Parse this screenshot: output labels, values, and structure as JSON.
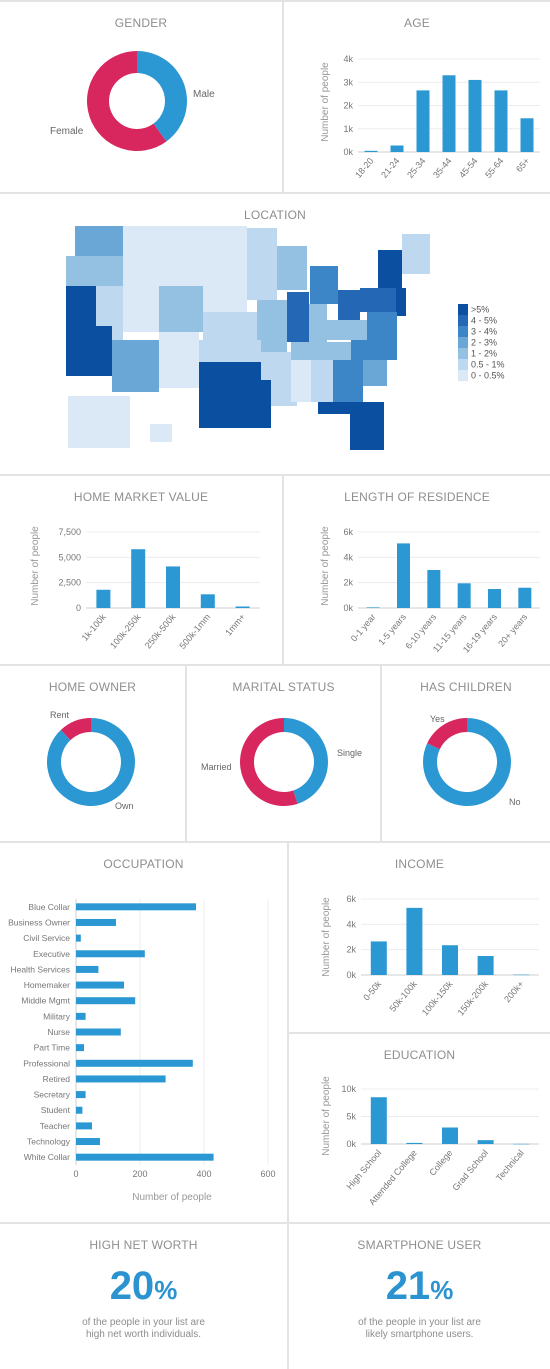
{
  "colors": {
    "blue": "#2b98d3",
    "pink": "#d8265f",
    "grid": "#ececec",
    "map_scale": [
      "#0a4fa0",
      "#2468b5",
      "#3c86c7",
      "#6aa7d6",
      "#94c1e2",
      "#bed8ef",
      "#dbe9f7"
    ]
  },
  "gender": {
    "title": "GENDER",
    "chart_data": {
      "type": "pie",
      "donut": true,
      "slices": [
        {
          "label": "Male",
          "value": 0.4,
          "color": "#2b98d3"
        },
        {
          "label": "Female",
          "value": 0.6,
          "color": "#d8265f"
        }
      ]
    }
  },
  "age": {
    "title": "AGE",
    "chart_data": {
      "type": "bar",
      "categories": [
        "18-20",
        "21-24",
        "25-34",
        "35-44",
        "45-54",
        "55-64",
        "65+"
      ],
      "values": [
        50,
        280,
        2650,
        3300,
        3100,
        2650,
        1450
      ],
      "ylabel": "Number of people",
      "yticks": [
        "0k",
        "1k",
        "2k",
        "3k",
        "4k"
      ],
      "ylim": [
        0,
        4000
      ]
    }
  },
  "location": {
    "title": "LOCATION",
    "legend": [
      ">5%",
      "4 - 5%",
      "3 - 4%",
      "2 - 3%",
      "1 - 2%",
      "0.5 - 1%",
      "0 - 0.5%"
    ]
  },
  "home_value": {
    "title": "HOME MARKET VALUE",
    "chart_data": {
      "type": "bar",
      "categories": [
        "1k-100k",
        "100k-250k",
        "250k-500k",
        "500k-1mm",
        "1mm+"
      ],
      "values": [
        1800,
        5800,
        4100,
        1350,
        150
      ],
      "ylabel": "Number of people",
      "yticks": [
        "0",
        "2,500",
        "5,000",
        "7,500"
      ],
      "ylim": [
        0,
        7500
      ]
    }
  },
  "residence": {
    "title": "LENGTH OF RESIDENCE",
    "chart_data": {
      "type": "bar",
      "categories": [
        "0-1 year",
        "1-5 years",
        "6-10 years",
        "11-15 years",
        "16-19 years",
        "20+ years"
      ],
      "values": [
        50,
        5100,
        3000,
        1950,
        1500,
        1600
      ],
      "ylabel": "Number of people",
      "yticks": [
        "0k",
        "2k",
        "4k",
        "6k"
      ],
      "ylim": [
        0,
        6000
      ]
    }
  },
  "home_owner": {
    "title": "HOME OWNER",
    "chart_data": {
      "type": "pie",
      "donut": true,
      "slices": [
        {
          "label": "Own",
          "value": 0.88,
          "color": "#2b98d3"
        },
        {
          "label": "Rent",
          "value": 0.12,
          "color": "#d8265f"
        }
      ]
    }
  },
  "marital": {
    "title": "MARITAL STATUS",
    "chart_data": {
      "type": "pie",
      "donut": true,
      "slices": [
        {
          "label": "Single",
          "value": 0.45,
          "color": "#2b98d3"
        },
        {
          "label": "Married",
          "value": 0.55,
          "color": "#d8265f"
        }
      ]
    }
  },
  "children": {
    "title": "HAS CHILDREN",
    "chart_data": {
      "type": "pie",
      "donut": true,
      "slices": [
        {
          "label": "No",
          "value": 0.82,
          "color": "#2b98d3"
        },
        {
          "label": "Yes",
          "value": 0.18,
          "color": "#d8265f"
        }
      ]
    }
  },
  "occupation": {
    "title": "OCCUPATION",
    "chart_data": {
      "type": "bar",
      "orientation": "horizontal",
      "categories": [
        "Blue Collar",
        "Business Owner",
        "Civil Service",
        "Executive",
        "Health Services",
        "Homemaker",
        "Middle Mgmt",
        "Military",
        "Nurse",
        "Part Time",
        "Professional",
        "Retired",
        "Secretary",
        "Student",
        "Teacher",
        "Technology",
        "White Collar"
      ],
      "values": [
        375,
        125,
        15,
        215,
        70,
        150,
        185,
        30,
        140,
        25,
        365,
        280,
        30,
        20,
        50,
        75,
        430
      ],
      "xlabel": "Number of people",
      "xticks": [
        "0",
        "200",
        "400",
        "600"
      ],
      "xlim": [
        0,
        600
      ]
    }
  },
  "income": {
    "title": "INCOME",
    "chart_data": {
      "type": "bar",
      "categories": [
        "0-50k",
        "50k-100k",
        "100k-150k",
        "150k-200k",
        "200k+"
      ],
      "values": [
        2650,
        5300,
        2350,
        1500,
        30
      ],
      "ylabel": "Number of people",
      "yticks": [
        "0k",
        "2k",
        "4k",
        "6k"
      ],
      "ylim": [
        0,
        6000
      ]
    }
  },
  "education": {
    "title": "EDUCATION",
    "chart_data": {
      "type": "bar",
      "categories": [
        "High School",
        "Attended College",
        "College",
        "Grad School",
        "Technical"
      ],
      "values": [
        8500,
        200,
        3000,
        700,
        30
      ],
      "ylabel": "Number of people",
      "yticks": [
        "0k",
        "5k",
        "10k"
      ],
      "ylim": [
        0,
        10000
      ]
    }
  },
  "net_worth": {
    "title": "HIGH NET WORTH",
    "value": "20",
    "unit": "%",
    "caption_line1": "of the people in your list are",
    "caption_line2": "high net worth individuals."
  },
  "smartphone": {
    "title": "SMARTPHONE USER",
    "value": "21",
    "unit": "%",
    "caption_line1": "of the people in your list are",
    "caption_line2": "likely smartphone users."
  }
}
